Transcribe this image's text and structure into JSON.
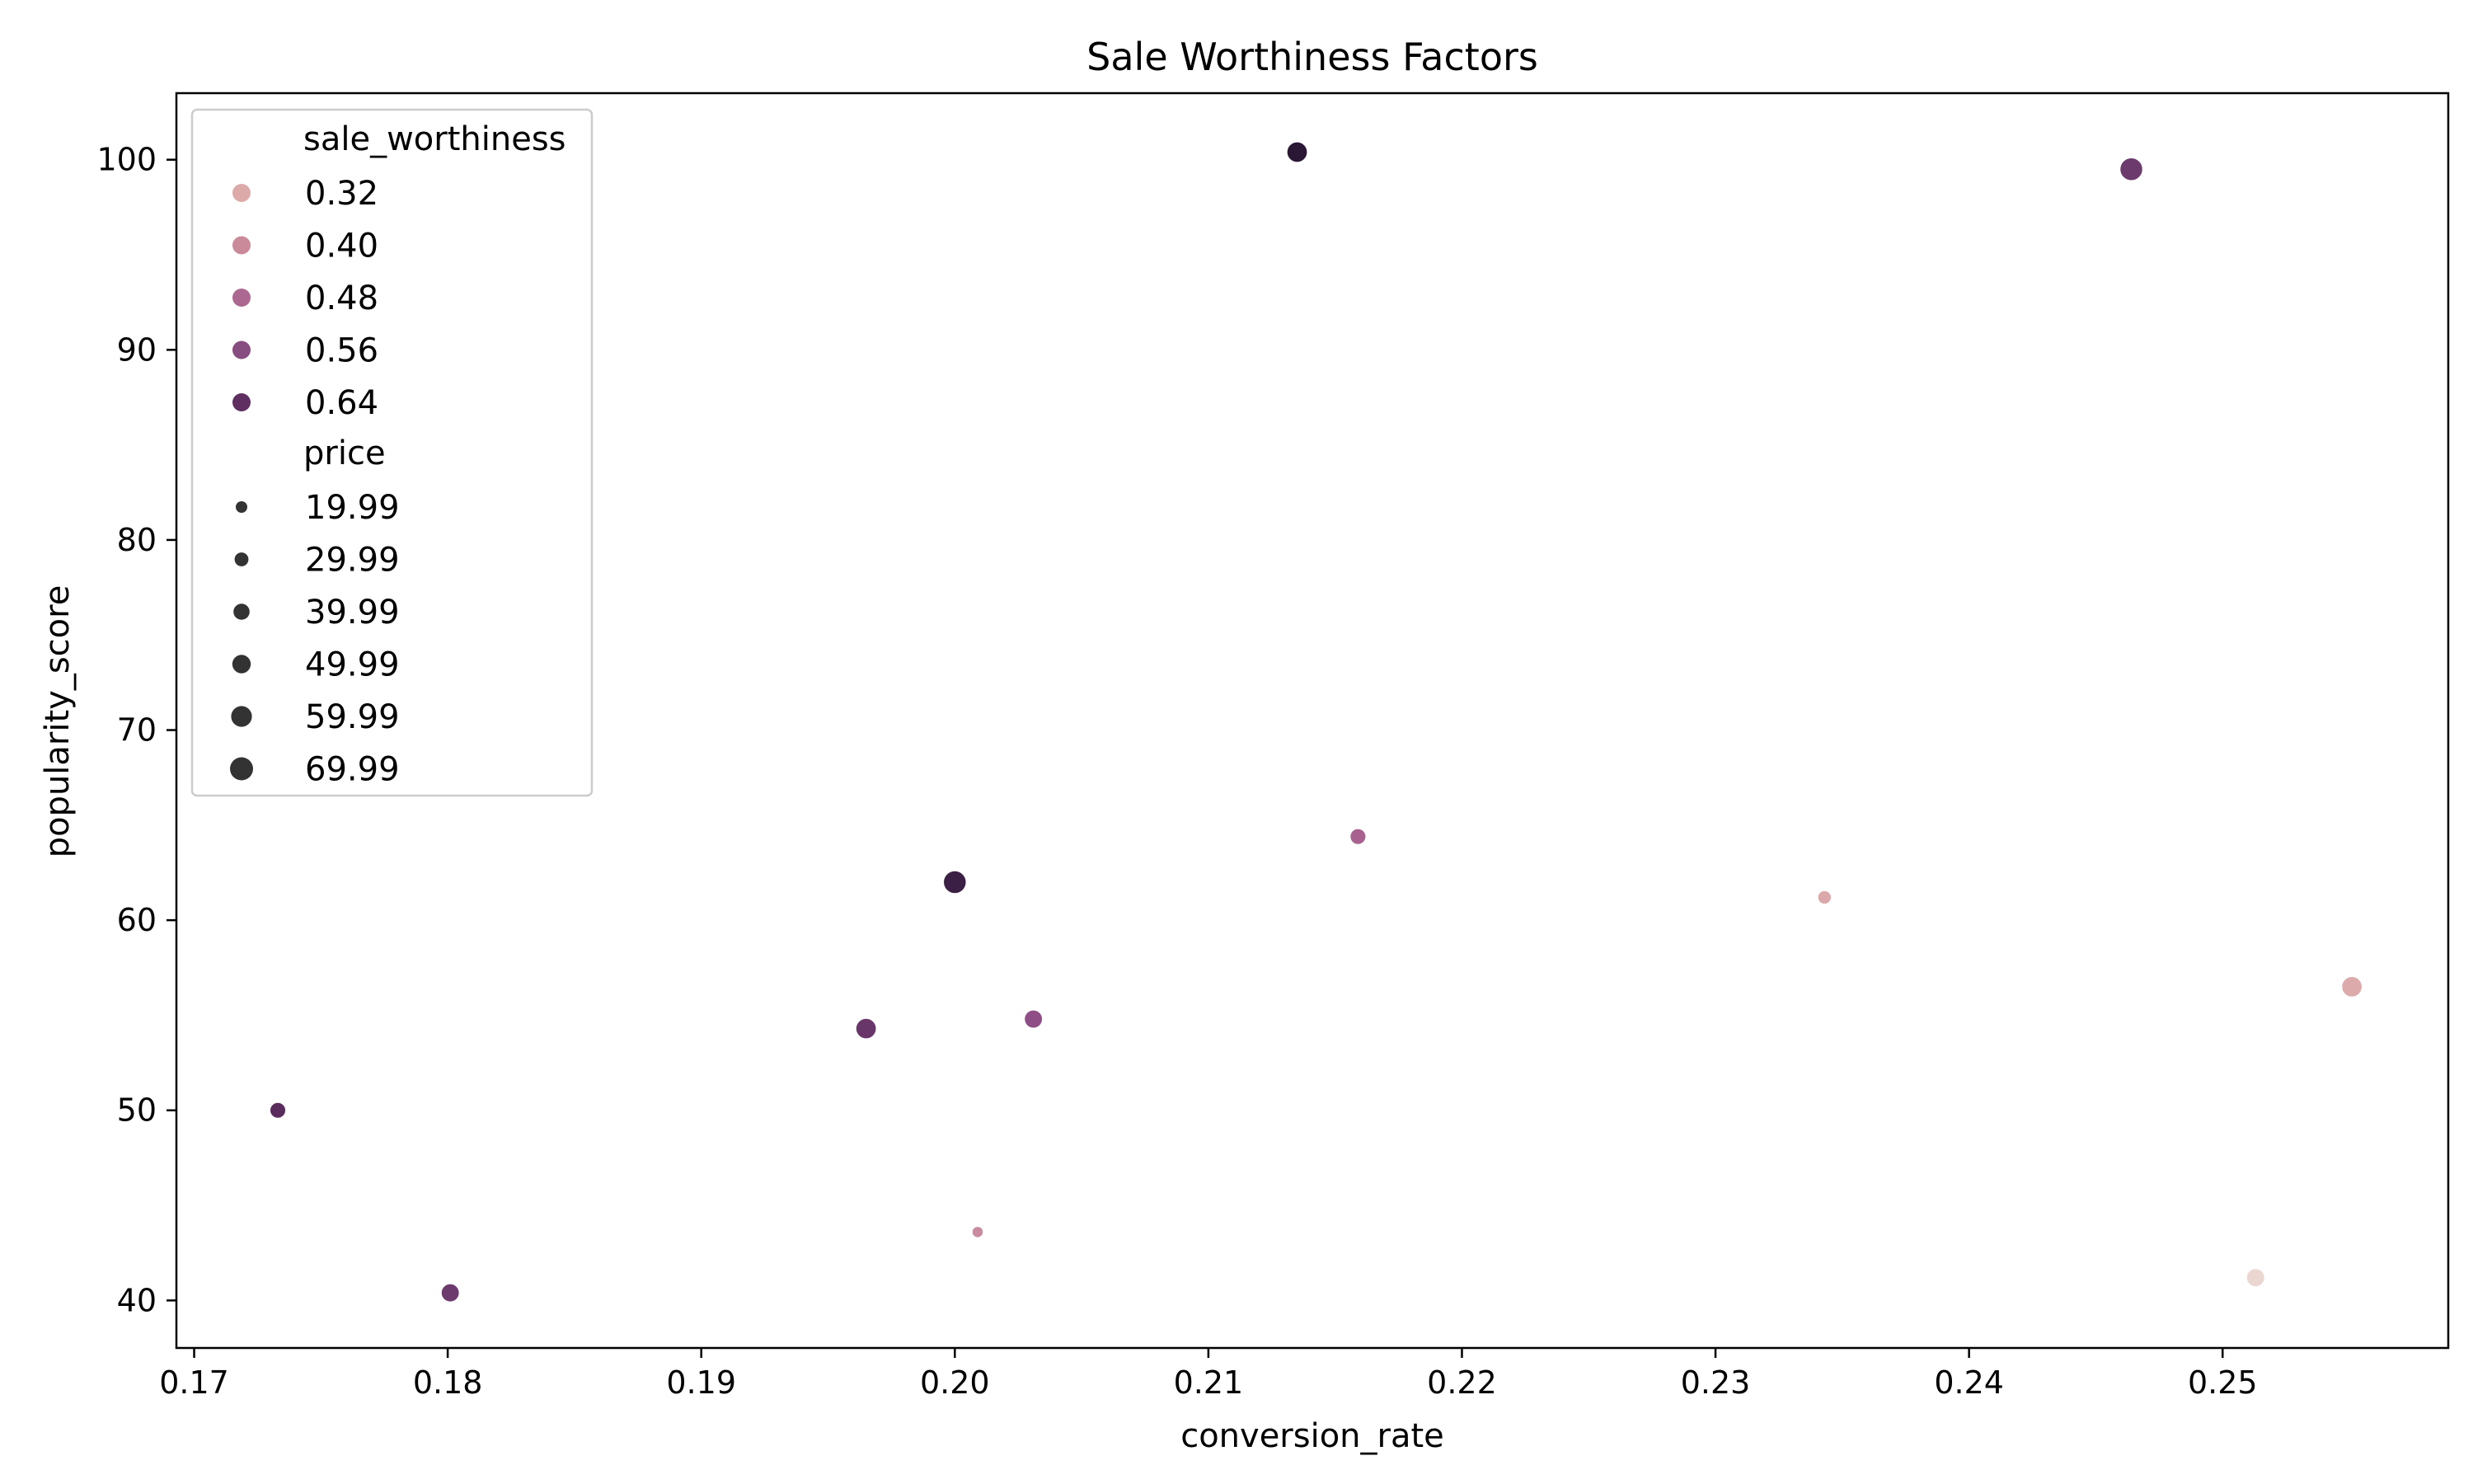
{
  "chart_data": {
    "type": "scatter",
    "title": "Sale Worthiness Factors",
    "xlabel": "conversion_rate",
    "ylabel": "popularity_score",
    "xlim": [
      0.1693,
      0.2589
    ],
    "ylim": [
      37.5,
      103.5
    ],
    "xticks": [
      0.17,
      0.18,
      0.19,
      0.2,
      0.21,
      0.22,
      0.23,
      0.24,
      0.25
    ],
    "xtick_labels": [
      "0.17",
      "0.18",
      "0.19",
      "0.20",
      "0.21",
      "0.22",
      "0.23",
      "0.24",
      "0.25"
    ],
    "yticks": [
      40,
      50,
      60,
      70,
      80,
      90,
      100
    ],
    "ytick_labels": [
      "40",
      "50",
      "60",
      "70",
      "80",
      "90",
      "100"
    ],
    "grid": false,
    "legend_placement": "upper-left",
    "legend": {
      "hue_title": "sale_worthiness",
      "hue_entries": [
        {
          "label": "0.32",
          "color": "#dcaaa9"
        },
        {
          "label": "0.40",
          "color": "#cb8a9a"
        },
        {
          "label": "0.48",
          "color": "#ad6891"
        },
        {
          "label": "0.56",
          "color": "#874c80"
        },
        {
          "label": "0.64",
          "color": "#5f2f62"
        }
      ],
      "size_title": "price",
      "size_entries": [
        {
          "label": "19.99",
          "value": 19.99
        },
        {
          "label": "29.99",
          "value": 29.99
        },
        {
          "label": "39.99",
          "value": 39.99
        },
        {
          "label": "49.99",
          "value": 49.99
        },
        {
          "label": "59.99",
          "value": 59.99
        },
        {
          "label": "69.99",
          "value": 69.99
        }
      ],
      "size_marker_color": "#333333"
    },
    "size_range": {
      "price_min": 19.99,
      "price_max": 69.99
    },
    "points": [
      {
        "x": 0.1733,
        "y": 50.0,
        "price": 39.99,
        "color": "#5a2c5e"
      },
      {
        "x": 0.1801,
        "y": 40.4,
        "price": 49.99,
        "color": "#6d3a6e"
      },
      {
        "x": 0.1965,
        "y": 54.3,
        "price": 59.99,
        "color": "#683669"
      },
      {
        "x": 0.2,
        "y": 62.0,
        "price": 69.99,
        "color": "#3b1f45"
      },
      {
        "x": 0.2009,
        "y": 43.6,
        "price": 19.99,
        "color": "#c98c9f"
      },
      {
        "x": 0.2031,
        "y": 54.8,
        "price": 49.99,
        "color": "#8f4f86"
      },
      {
        "x": 0.2135,
        "y": 100.4,
        "price": 59.99,
        "color": "#2a1735"
      },
      {
        "x": 0.2159,
        "y": 64.4,
        "price": 39.99,
        "color": "#a8628f"
      },
      {
        "x": 0.2343,
        "y": 61.2,
        "price": 29.99,
        "color": "#dca9ab"
      },
      {
        "x": 0.2464,
        "y": 99.5,
        "price": 69.99,
        "color": "#6d3a6e"
      },
      {
        "x": 0.2513,
        "y": 41.2,
        "price": 49.99,
        "color": "#ecd6d2"
      },
      {
        "x": 0.2551,
        "y": 56.5,
        "price": 59.99,
        "color": "#dcaaab"
      }
    ]
  }
}
